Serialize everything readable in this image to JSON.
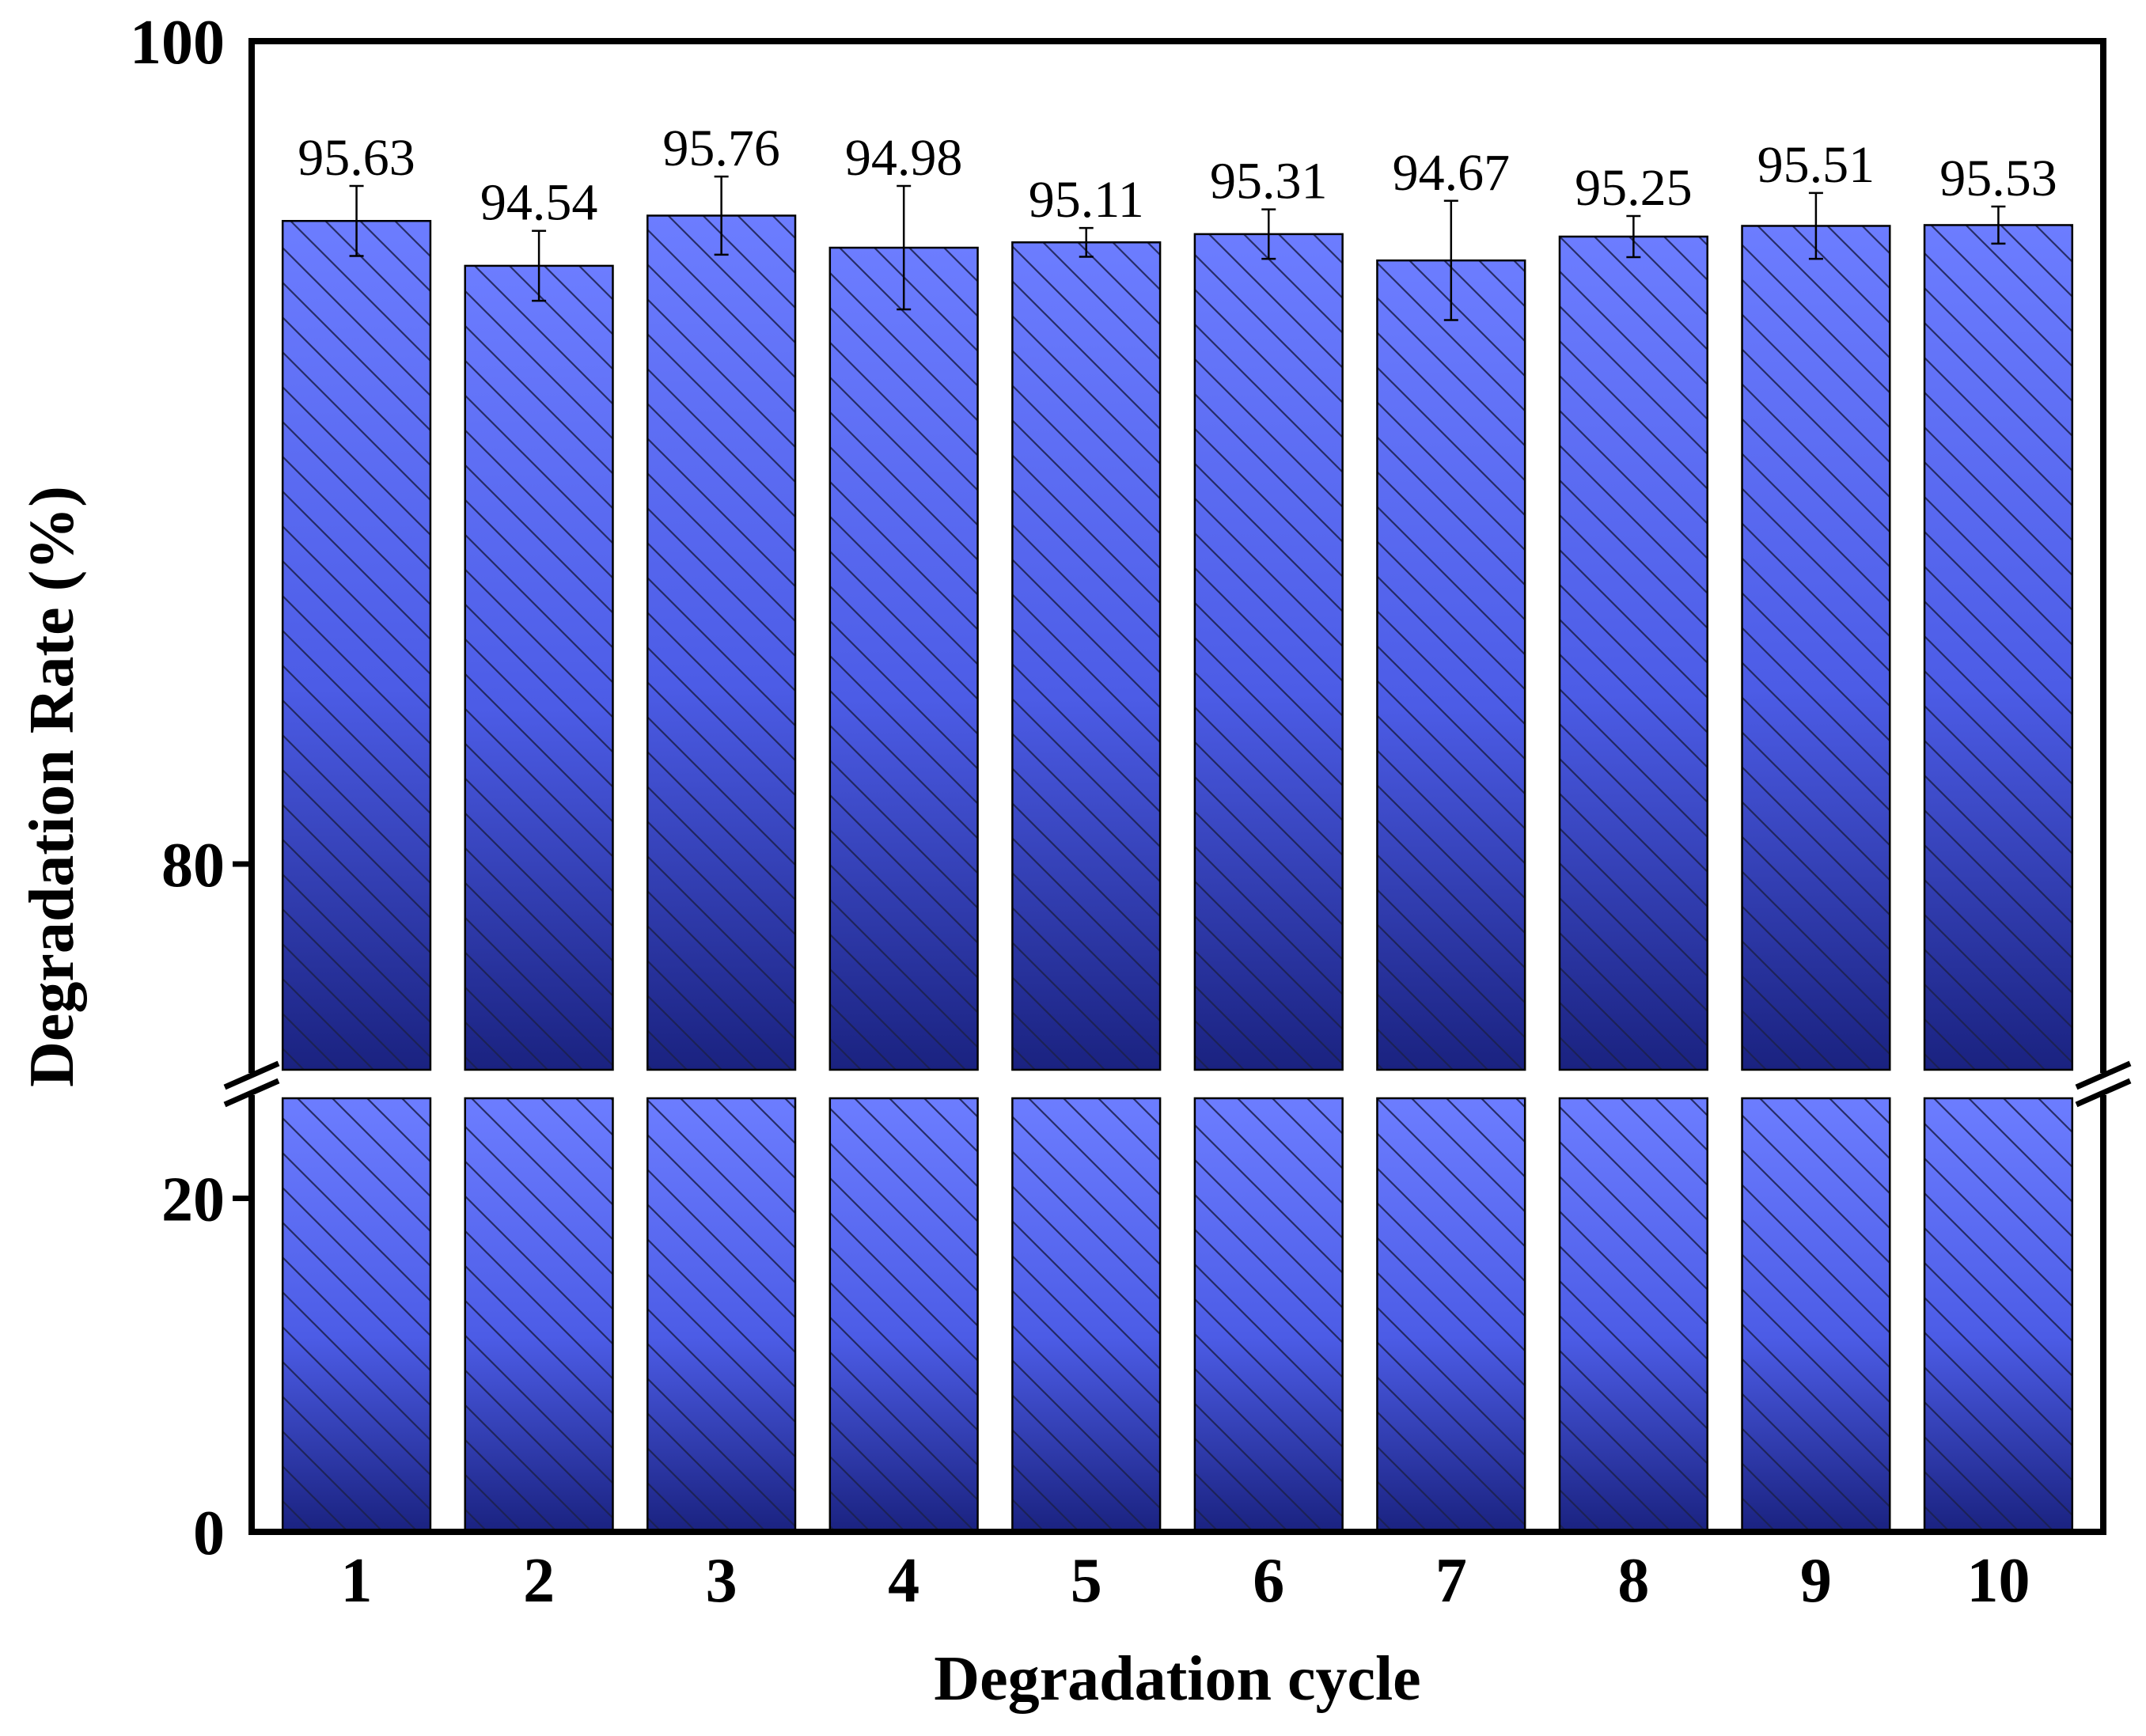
{
  "chart_data": {
    "type": "bar",
    "xlabel": "Degradation cycle",
    "ylabel": "Degradation Rate (%)",
    "categories": [
      "1",
      "2",
      "3",
      "4",
      "5",
      "6",
      "7",
      "8",
      "9",
      "10"
    ],
    "values": [
      95.63,
      94.54,
      95.76,
      94.98,
      95.11,
      95.31,
      94.67,
      95.25,
      95.51,
      95.53
    ],
    "data_labels": [
      "95.63",
      "94.54",
      "95.76",
      "94.98",
      "95.11",
      "95.31",
      "94.67",
      "95.25",
      "95.51",
      "95.53"
    ],
    "errors": [
      0.85,
      0.85,
      0.95,
      1.5,
      0.35,
      0.6,
      1.45,
      0.5,
      0.8,
      0.45
    ],
    "y_axis": {
      "broken": true,
      "lower_segment": [
        0,
        26
      ],
      "upper_segment": [
        75,
        100
      ],
      "ticks": [
        0,
        20,
        80,
        100
      ],
      "tick_labels": [
        "0",
        "20",
        "80",
        "100"
      ]
    },
    "grid": false,
    "legend": "none",
    "bar_fill": "blue gradient with diagonal hatch",
    "colors": {
      "bar_light": "#6c7dff",
      "bar_mid": "#4c5ce6",
      "bar_dark": "#1a2280",
      "hatch": "#1a1f4d",
      "axis": "#000000"
    }
  }
}
